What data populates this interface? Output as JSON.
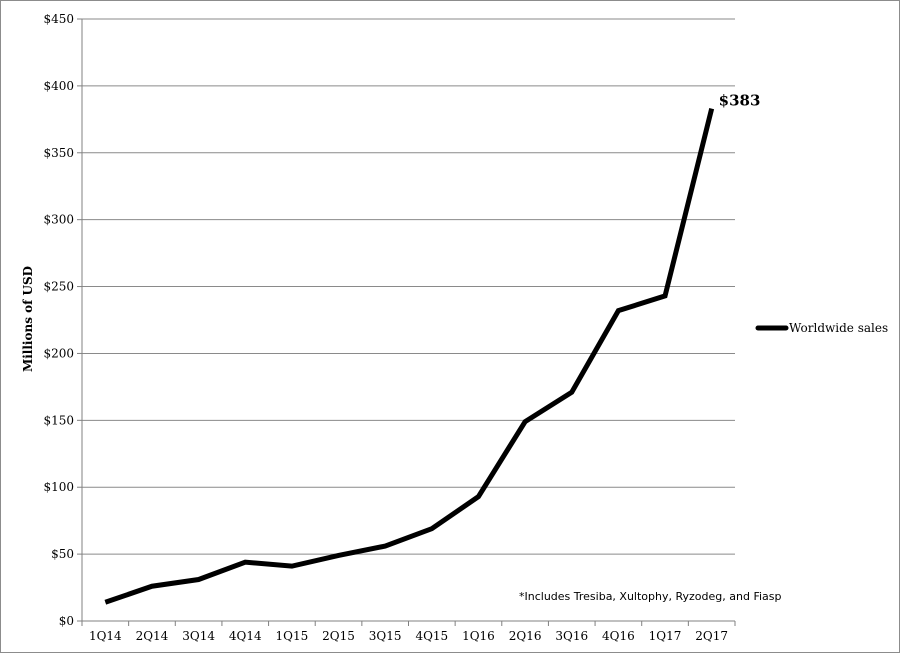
{
  "chart_data": {
    "type": "line",
    "title": "",
    "xlabel": "",
    "ylabel": "Millions of USD",
    "categories": [
      "1Q14",
      "2Q14",
      "3Q14",
      "4Q14",
      "1Q15",
      "2Q15",
      "3Q15",
      "4Q15",
      "1Q16",
      "2Q16",
      "3Q16",
      "4Q16",
      "1Q17",
      "2Q17"
    ],
    "series": [
      {
        "name": "Worldwide sales",
        "color": "#000000",
        "values": [
          14,
          26,
          31,
          44,
          41,
          49,
          56,
          69,
          93,
          149,
          171,
          232,
          243,
          383
        ]
      }
    ],
    "ylim": [
      0,
      450
    ],
    "yticks": [
      0,
      50,
      100,
      150,
      200,
      250,
      300,
      350,
      400,
      450
    ],
    "ytick_labels": [
      "$0",
      "$50",
      "$100",
      "$150",
      "$200",
      "$250",
      "$300",
      "$350",
      "$400",
      "$450"
    ],
    "grid": "horizontal",
    "legend": "right",
    "annotations": [
      {
        "text": "$383",
        "category": "2Q17",
        "value": 383
      }
    ],
    "footnote": "*Includes Tresiba, Xultophy, Ryzodeg, and Fiasp"
  }
}
